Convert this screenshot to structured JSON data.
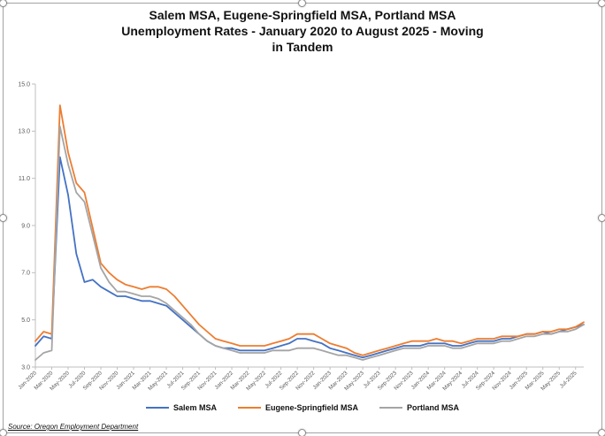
{
  "chart_data": {
    "type": "line",
    "title": "Salem MSA, Eugene-Springfield MSA, Portland MSA\nUnemployment Rates - January 2020 to August 2025 -  Moving\nin Tandem",
    "source_note": "Source: Oregon Employment Department",
    "xlabel": "",
    "ylabel": "",
    "ylim": [
      3.0,
      15.0
    ],
    "ytick_step": 2.0,
    "ytick_labels": [
      "3.0",
      "5.0",
      "7.0",
      "9.0",
      "11.0",
      "13.0",
      "15.0"
    ],
    "xtick_every": 2,
    "grid": false,
    "legend_position": "bottom",
    "axis_color": "#bfbfbf",
    "tick_label_color": "#595959",
    "categories": [
      "Jan-2020",
      "Feb-2020",
      "Mar-2020",
      "Apr-2020",
      "May-2020",
      "Jun-2020",
      "Jul-2020",
      "Aug-2020",
      "Sep-2020",
      "Oct-2020",
      "Nov-2020",
      "Dec-2020",
      "Jan-2021",
      "Feb-2021",
      "Mar-2021",
      "Apr-2021",
      "May-2021",
      "Jun-2021",
      "Jul-2021",
      "Aug-2021",
      "Sep-2021",
      "Oct-2021",
      "Nov-2021",
      "Dec-2021",
      "Jan-2022",
      "Feb-2022",
      "Mar-2022",
      "Apr-2022",
      "May-2022",
      "Jun-2022",
      "Jul-2022",
      "Aug-2022",
      "Sep-2022",
      "Oct-2022",
      "Nov-2022",
      "Dec-2022",
      "Jan-2023",
      "Feb-2023",
      "Mar-2023",
      "Apr-2023",
      "May-2023",
      "Jun-2023",
      "Jul-2023",
      "Aug-2023",
      "Sep-2023",
      "Oct-2023",
      "Nov-2023",
      "Dec-2023",
      "Jan-2024",
      "Feb-2024",
      "Mar-2024",
      "Apr-2024",
      "May-2024",
      "Jun-2024",
      "Jul-2024",
      "Aug-2024",
      "Sep-2024",
      "Oct-2024",
      "Nov-2024",
      "Dec-2024",
      "Jan-2025",
      "Feb-2025",
      "Mar-2025",
      "Apr-2025",
      "May-2025",
      "Jun-2025",
      "Jul-2025",
      "Aug-2025"
    ],
    "series": [
      {
        "name": "Salem MSA",
        "color": "#4472C4",
        "values": [
          3.9,
          4.3,
          4.2,
          11.9,
          10.3,
          7.8,
          6.6,
          6.7,
          6.4,
          6.2,
          6.0,
          6.0,
          5.9,
          5.8,
          5.8,
          5.7,
          5.6,
          5.3,
          5.0,
          4.7,
          4.4,
          4.1,
          3.9,
          3.8,
          3.8,
          3.7,
          3.7,
          3.7,
          3.7,
          3.8,
          3.9,
          4.0,
          4.2,
          4.2,
          4.1,
          4.0,
          3.8,
          3.7,
          3.6,
          3.5,
          3.4,
          3.5,
          3.6,
          3.7,
          3.8,
          3.9,
          3.9,
          3.9,
          4.0,
          4.0,
          4.0,
          3.9,
          3.9,
          4.0,
          4.1,
          4.1,
          4.1,
          4.2,
          4.2,
          4.3,
          4.4,
          4.4,
          4.5,
          4.4,
          4.5,
          4.6,
          4.7,
          4.8
        ]
      },
      {
        "name": "Eugene-Springfield MSA",
        "color": "#ED7D31",
        "values": [
          4.1,
          4.5,
          4.4,
          14.1,
          12.1,
          10.8,
          10.4,
          8.9,
          7.4,
          7.0,
          6.7,
          6.5,
          6.4,
          6.3,
          6.4,
          6.4,
          6.3,
          6.0,
          5.6,
          5.2,
          4.8,
          4.5,
          4.2,
          4.1,
          4.0,
          3.9,
          3.9,
          3.9,
          3.9,
          4.0,
          4.1,
          4.2,
          4.4,
          4.4,
          4.4,
          4.2,
          4.0,
          3.9,
          3.8,
          3.6,
          3.5,
          3.6,
          3.7,
          3.8,
          3.9,
          4.0,
          4.1,
          4.1,
          4.1,
          4.2,
          4.1,
          4.1,
          4.0,
          4.1,
          4.2,
          4.2,
          4.2,
          4.3,
          4.3,
          4.3,
          4.4,
          4.4,
          4.5,
          4.5,
          4.6,
          4.6,
          4.7,
          4.9
        ]
      },
      {
        "name": "Portland MSA",
        "color": "#A5A5A5",
        "values": [
          3.3,
          3.6,
          3.7,
          13.2,
          11.6,
          10.4,
          10.0,
          8.6,
          7.2,
          6.6,
          6.2,
          6.2,
          6.1,
          6.0,
          6.0,
          5.9,
          5.7,
          5.4,
          5.1,
          4.8,
          4.4,
          4.1,
          3.9,
          3.8,
          3.7,
          3.6,
          3.6,
          3.6,
          3.6,
          3.7,
          3.7,
          3.7,
          3.8,
          3.8,
          3.8,
          3.7,
          3.6,
          3.5,
          3.5,
          3.4,
          3.3,
          3.4,
          3.5,
          3.6,
          3.7,
          3.8,
          3.8,
          3.8,
          3.9,
          3.9,
          3.9,
          3.8,
          3.8,
          3.9,
          4.0,
          4.0,
          4.0,
          4.1,
          4.1,
          4.2,
          4.3,
          4.3,
          4.4,
          4.4,
          4.5,
          4.5,
          4.6,
          4.8
        ]
      }
    ]
  }
}
